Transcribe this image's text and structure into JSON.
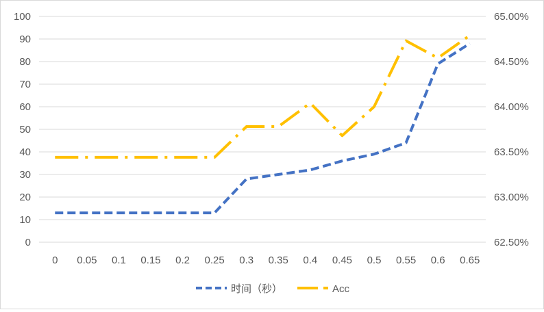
{
  "chart_data": {
    "type": "line",
    "categories": [
      "0",
      "0.05",
      "0.1",
      "0.15",
      "0.2",
      "0.25",
      "0.3",
      "0.35",
      "0.4",
      "0.45",
      "0.5",
      "0.55",
      "0.6",
      "0.65"
    ],
    "y_left": {
      "ylim": [
        0,
        100
      ],
      "ticks": [
        "0",
        "10",
        "20",
        "30",
        "40",
        "50",
        "60",
        "70",
        "80",
        "90",
        "100"
      ]
    },
    "y_right": {
      "ylim": [
        62.5,
        65.0
      ],
      "ticks": [
        "62.50%",
        "63.00%",
        "63.50%",
        "64.00%",
        "64.50%",
        "65.00%"
      ]
    },
    "grid": true,
    "legend_position": "bottom",
    "series": [
      {
        "name": "时间（秒）",
        "axis": "left",
        "color": "#4472C4",
        "dash": "dash",
        "values": [
          13,
          13,
          13,
          13,
          13,
          13,
          28,
          30,
          32,
          36,
          39,
          44,
          79,
          88
        ]
      },
      {
        "name": "Acc",
        "axis": "right",
        "color": "#FFC000",
        "dash": "long-dash-dot",
        "values": [
          63.44,
          63.44,
          63.44,
          63.44,
          63.44,
          63.44,
          63.78,
          63.78,
          64.04,
          63.68,
          64.0,
          64.73,
          64.54,
          64.79
        ]
      }
    ]
  }
}
